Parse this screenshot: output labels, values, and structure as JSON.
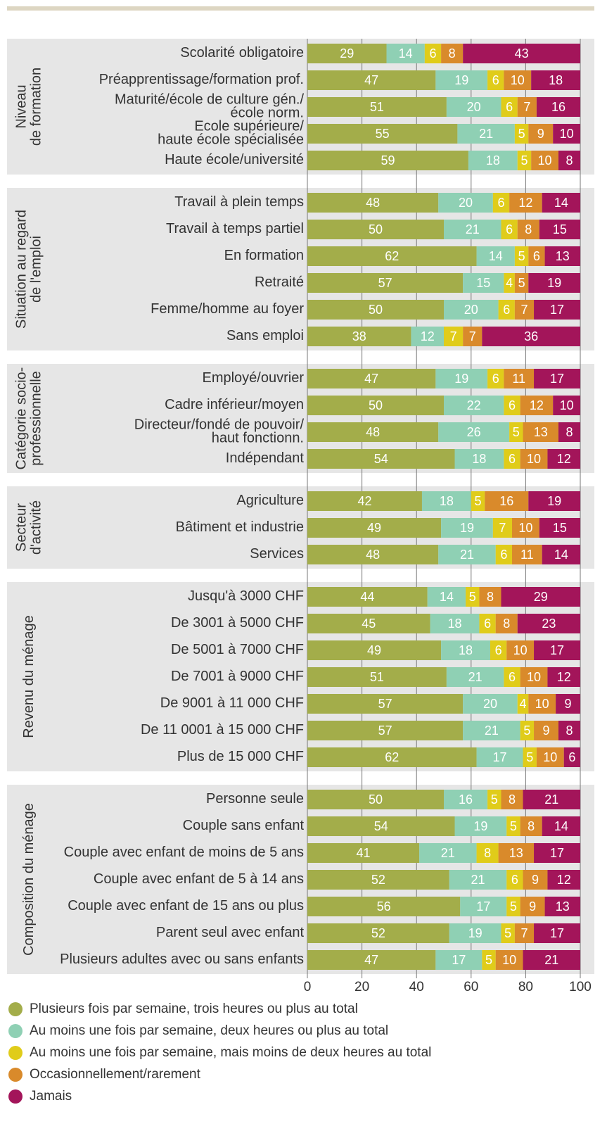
{
  "chart_data": {
    "type": "stacked-bar-horizontal",
    "groups": [
      {
        "name": "Niveau\nde formation",
        "categories": [
          "Scolarité obligatoire",
          "Préapprentissage/formation prof.",
          "Maturité/école de culture gén./\nécole norm.",
          "Ecole supérieure/\nhaute école spécialisée",
          "Haute école/université"
        ]
      },
      {
        "name": "Situation au regard\nde l'emploi",
        "categories": [
          "Travail à plein temps",
          "Travail à temps partiel",
          "En formation",
          "Retraité",
          "Femme/homme au foyer",
          "Sans emploi"
        ]
      },
      {
        "name": "Catégorie socio-\nprofessionnelle",
        "categories": [
          "Employé/ouvrier",
          "Cadre inférieur/moyen",
          "Directeur/fondé de pouvoir/\nhaut fonctionn.",
          "Indépendant"
        ]
      },
      {
        "name": "Secteur\nd'activité",
        "categories": [
          "Agriculture",
          "Bâtiment et industrie",
          "Services"
        ]
      },
      {
        "name": "Revenu du ménage",
        "categories": [
          "Jusqu'à 3000 CHF",
          "De 3001 à 5000 CHF",
          "De 5001 à 7000 CHF",
          "De 7001 à 9000 CHF",
          "De 9001 à 11 000 CHF",
          "De 11 0001 à 15 000 CHF",
          "Plus de 15 000 CHF"
        ]
      },
      {
        "name": "Composition du ménage",
        "categories": [
          "Personne seule",
          "Couple sans enfant",
          "Couple avec enfant de moins de 5 ans",
          "Couple avec enfant de 5 à 14 ans",
          "Couple avec enfant de 15 ans ou plus",
          "Parent seul avec enfant",
          "Plusieurs adultes avec ou sans enfants"
        ]
      }
    ],
    "series": [
      {
        "name": "Plusieurs fois par semaine, trois heures ou plus au total",
        "color": "#a3ad4a",
        "values": [
          29,
          47,
          51,
          55,
          59,
          48,
          50,
          62,
          57,
          50,
          38,
          47,
          50,
          48,
          54,
          42,
          49,
          48,
          44,
          45,
          49,
          51,
          57,
          57,
          62,
          50,
          54,
          41,
          52,
          56,
          52,
          47
        ]
      },
      {
        "name": "Au moins une fois par semaine, deux heures ou plus au total",
        "color": "#8fd0b4",
        "values": [
          14,
          19,
          20,
          21,
          18,
          20,
          21,
          14,
          15,
          20,
          12,
          19,
          22,
          26,
          18,
          18,
          19,
          21,
          14,
          18,
          18,
          21,
          20,
          21,
          17,
          16,
          19,
          21,
          21,
          17,
          19,
          17
        ]
      },
      {
        "name": "Au moins une fois par semaine, mais moins de deux heures au total",
        "color": "#e0cc1a",
        "values": [
          6,
          6,
          6,
          5,
          5,
          6,
          6,
          5,
          4,
          6,
          7,
          6,
          6,
          5,
          6,
          5,
          7,
          6,
          5,
          6,
          6,
          6,
          4,
          5,
          5,
          5,
          5,
          8,
          6,
          5,
          5,
          5
        ]
      },
      {
        "name": "Occasionnellement/rarement",
        "color": "#d98a2b",
        "values": [
          8,
          10,
          7,
          9,
          10,
          12,
          8,
          6,
          5,
          7,
          7,
          11,
          12,
          13,
          10,
          16,
          10,
          11,
          8,
          8,
          10,
          10,
          10,
          9,
          10,
          8,
          8,
          13,
          9,
          9,
          7,
          10
        ]
      },
      {
        "name": "Jamais",
        "color": "#a3155a",
        "values": [
          43,
          18,
          16,
          10,
          8,
          14,
          15,
          13,
          19,
          17,
          36,
          17,
          10,
          8,
          12,
          19,
          15,
          14,
          29,
          23,
          17,
          12,
          9,
          8,
          6,
          21,
          14,
          17,
          12,
          13,
          17,
          21
        ]
      }
    ],
    "xlim": [
      0,
      100
    ],
    "xticks": [
      0,
      20,
      40,
      60,
      80,
      100
    ],
    "grid": true
  }
}
